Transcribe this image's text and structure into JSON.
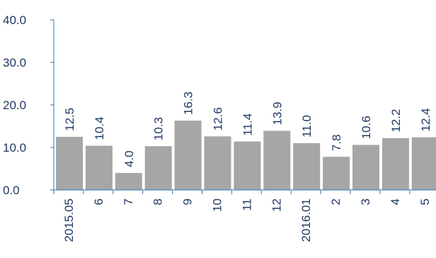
{
  "chart_data": {
    "type": "bar",
    "categories": [
      "2015.05",
      "6",
      "7",
      "8",
      "9",
      "10",
      "11",
      "12",
      "2016.01",
      "2",
      "3",
      "4",
      "5"
    ],
    "values": [
      12.5,
      10.4,
      4.0,
      10.3,
      16.3,
      12.6,
      11.4,
      13.9,
      11.0,
      7.8,
      10.6,
      12.2,
      12.4
    ],
    "data_labels": [
      "12.5",
      "10.4",
      "4.0",
      "10.3",
      "16.3",
      "12.6",
      "11.4",
      "13.9",
      "11.0",
      "7.8",
      "10.6",
      "12.2",
      "12.4"
    ],
    "y_ticks": [
      "0.0",
      "10.0",
      "20.0",
      "30.0",
      "40.0"
    ],
    "ylim": [
      0,
      40
    ],
    "title": "",
    "xlabel": "",
    "ylabel": "",
    "grid": false,
    "legend": "none",
    "colors": {
      "bar_fill": "#a6a6a6",
      "bar_stroke": "#ffffff",
      "axis": "#2e75b6",
      "text": "#1f3864"
    }
  }
}
